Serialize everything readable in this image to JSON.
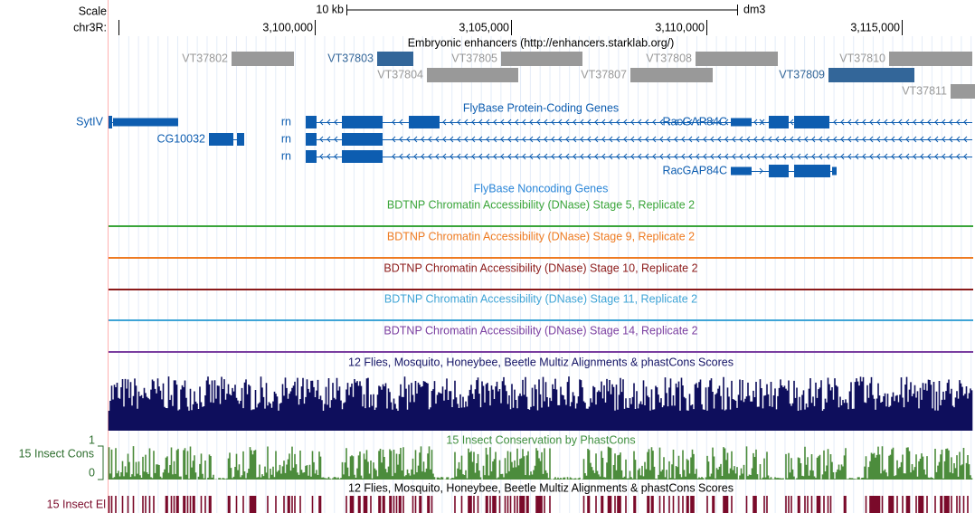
{
  "ruler": {
    "scale_label": "Scale",
    "chrom_label": "chr3R:",
    "scale_bar": "10 kb",
    "assembly": "dm3",
    "positions": [
      "3,100,000",
      "3,105,000",
      "3,110,000",
      "3,115,000"
    ]
  },
  "enhancers": {
    "title": "Embryonic enhancers (http://enhancers.starklab.org/)",
    "items": [
      {
        "label": "VT37802"
      },
      {
        "label": "VT37803"
      },
      {
        "label": "VT37805"
      },
      {
        "label": "VT37808"
      },
      {
        "label": "VT37810"
      },
      {
        "label": "VT37804"
      },
      {
        "label": "VT37807"
      },
      {
        "label": "VT37809"
      },
      {
        "label": "VT37811"
      }
    ]
  },
  "genes": {
    "title": "FlyBase Protein-Coding Genes",
    "items": [
      {
        "label": "SytIV"
      },
      {
        "label": "CG10032"
      },
      {
        "label": "rn"
      },
      {
        "label": "rn"
      },
      {
        "label": "rn"
      },
      {
        "label": "RacGAP84C"
      },
      {
        "label": "RacGAP84C"
      }
    ]
  },
  "noncoding": {
    "title": "FlyBase Noncoding Genes"
  },
  "dnase": [
    {
      "title": "BDTNP Chromatin Accessibility (DNase) Stage 5, Replicate 2"
    },
    {
      "title": "BDTNP Chromatin Accessibility (DNase) Stage 9, Replicate 2"
    },
    {
      "title": "BDTNP Chromatin Accessibility (DNase) Stage 10, Replicate 2"
    },
    {
      "title": "BDTNP Chromatin Accessibility (DNase) Stage 11, Replicate 2"
    },
    {
      "title": "BDTNP Chromatin Accessibility (DNase) Stage 14, Replicate 2"
    }
  ],
  "multiz": {
    "title": "12 Flies, Mosquito, Honeybee, Beetle Multiz Alignments & phastCons Scores"
  },
  "cons": {
    "title": "15 Insect Conservation by PhastCons",
    "label": "15 Insect Cons",
    "max": "1",
    "min": "0"
  },
  "elements": {
    "title": "12 Flies, Mosquito, Honeybee, Beetle Multiz Alignments & phastCons Scores",
    "label": "15 Insect El"
  }
}
